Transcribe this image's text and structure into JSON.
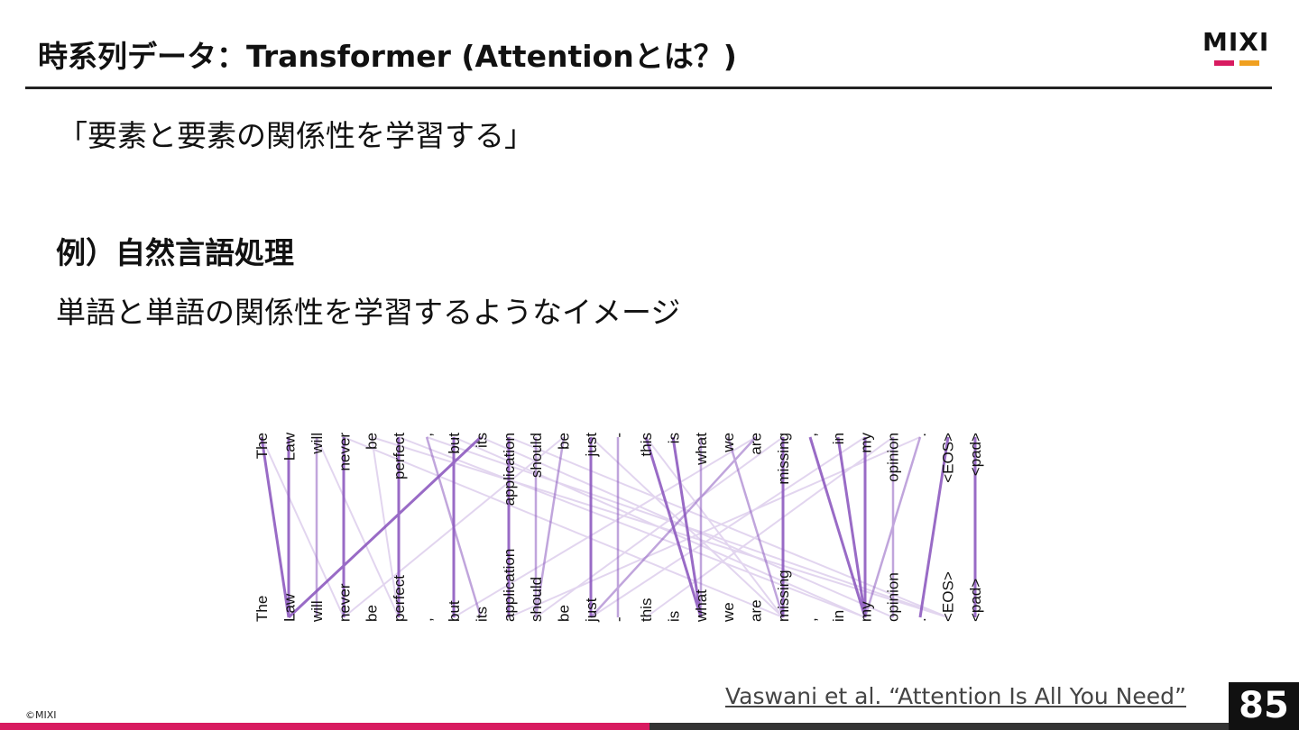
{
  "header": {
    "title": "時系列データ：Transformer (Attentionとは？)",
    "logo": "MIXI"
  },
  "body": {
    "subtitle": "「要素と要素の関係性を学習する」",
    "example_heading": "例）自然言語処理",
    "example_text": "単語と単語の関係性を学習するようなイメージ"
  },
  "figure": {
    "top_tokens": [
      "The",
      "Law",
      "will",
      "never",
      "be",
      "perfect",
      ",",
      "but",
      "its",
      "application",
      "should",
      "be",
      "just",
      "-",
      "this",
      "is",
      "what",
      "we",
      "are",
      "missing",
      ",",
      "in",
      "my",
      "opinion",
      ".",
      "<EOS>",
      "<pad>"
    ],
    "bottom_tokens": [
      "The",
      "Law",
      "will",
      "never",
      "be",
      "perfect",
      ",",
      "but",
      "its",
      "application",
      "should",
      "be",
      "just",
      "-",
      "this",
      "is",
      "what",
      "we",
      "are",
      "missing",
      ",",
      "in",
      "my",
      "opinion",
      ".",
      "<EOS>",
      "<pad>"
    ]
  },
  "footer": {
    "citation": "Vaswani et al. “Attention Is All You Need”",
    "page_number": "85",
    "copyright": "©MIXI"
  }
}
